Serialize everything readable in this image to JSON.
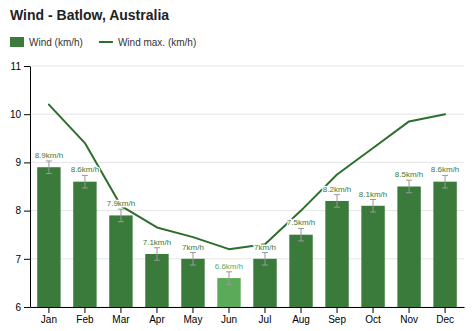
{
  "chart_data": {
    "type": "bar",
    "title": "Wind - Batlow, Australia",
    "categories": [
      "Jan",
      "Feb",
      "Mar",
      "Apr",
      "May",
      "Jun",
      "Jul",
      "Aug",
      "Sep",
      "Oct",
      "Nov",
      "Dec"
    ],
    "series": [
      {
        "name": "Wind (km/h)",
        "type": "bar",
        "color": "#3a7a3a",
        "colors": [
          "#3a7a3a",
          "#3a7a3a",
          "#3a7a3a",
          "#3a7a3a",
          "#3a7a3a",
          "#5aaa5a",
          "#3a7a3a",
          "#3a7a3a",
          "#3a7a3a",
          "#3a7a3a",
          "#3a7a3a",
          "#3a7a3a"
        ],
        "values": [
          8.9,
          8.6,
          7.9,
          7.1,
          7.0,
          6.6,
          7.0,
          7.5,
          8.2,
          8.1,
          8.5,
          8.6
        ],
        "value_labels": [
          "8.9km/h",
          "8.6km/h",
          "7.9km/h",
          "7.1km/h",
          "7km/h",
          "6.6km/h",
          "7km/h",
          "7.5km/h",
          "8.2km/h",
          "8.1km/h",
          "8.5km/h",
          "8.6km/h"
        ],
        "errors": [
          0.13,
          0.13,
          0.13,
          0.13,
          0.13,
          0.13,
          0.13,
          0.13,
          0.13,
          0.13,
          0.13,
          0.13
        ]
      },
      {
        "name": "Wind max. (km/h)",
        "type": "line",
        "color": "#2d6e2d",
        "values": [
          10.2,
          9.4,
          8.1,
          7.65,
          7.45,
          7.2,
          7.3,
          8.0,
          8.75,
          9.3,
          9.85,
          10.0
        ]
      }
    ],
    "ylim": [
      6,
      11
    ],
    "yticks": [
      6,
      7,
      8,
      9,
      10,
      11
    ],
    "grid": true,
    "legend": "top",
    "data_labels": true
  }
}
